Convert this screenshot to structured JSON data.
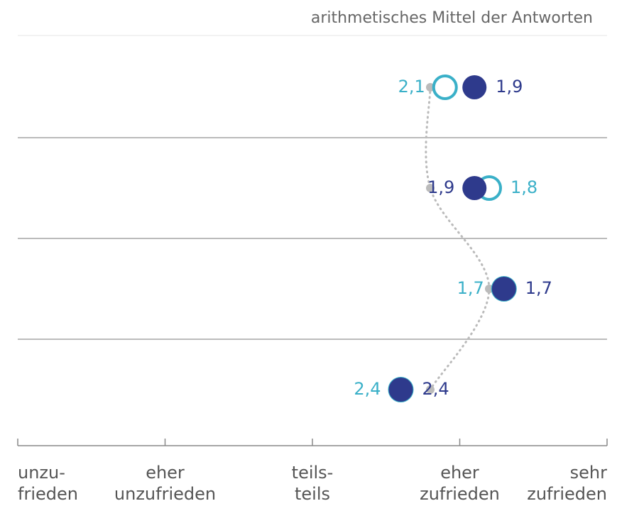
{
  "chart_data": {
    "type": "dot",
    "title": "arithmetisches Mittel der Antworten",
    "categories": [
      null,
      null,
      null,
      null
    ],
    "series": [
      {
        "color": "#bbbbbb",
        "values": [
          2.2,
          2.2,
          1.8,
          2.2
        ]
      },
      {
        "color": "#3ab0c8",
        "hollow": true,
        "values": [
          2.1,
          1.8,
          1.7,
          2.4
        ],
        "value_labels": [
          "2,1",
          "1,8",
          "1,7",
          "2,4"
        ]
      },
      {
        "color": "#2e3a8c",
        "values": [
          1.9,
          1.9,
          1.7,
          2.4
        ],
        "value_labels": [
          "1,9",
          "1,9",
          "1,7",
          "2,4"
        ]
      }
    ],
    "xlim": [
      5,
      1
    ],
    "xticks": [
      {
        "value": 5,
        "label": "unzu-\nfrieden"
      },
      {
        "value": 4,
        "label": "eher\nunzufrieden"
      },
      {
        "value": 3,
        "label": "teils-\nteils"
      },
      {
        "value": 2,
        "label": "eher\nzufrieden"
      },
      {
        "value": 1,
        "label": "sehr\nzufrieden"
      }
    ]
  }
}
